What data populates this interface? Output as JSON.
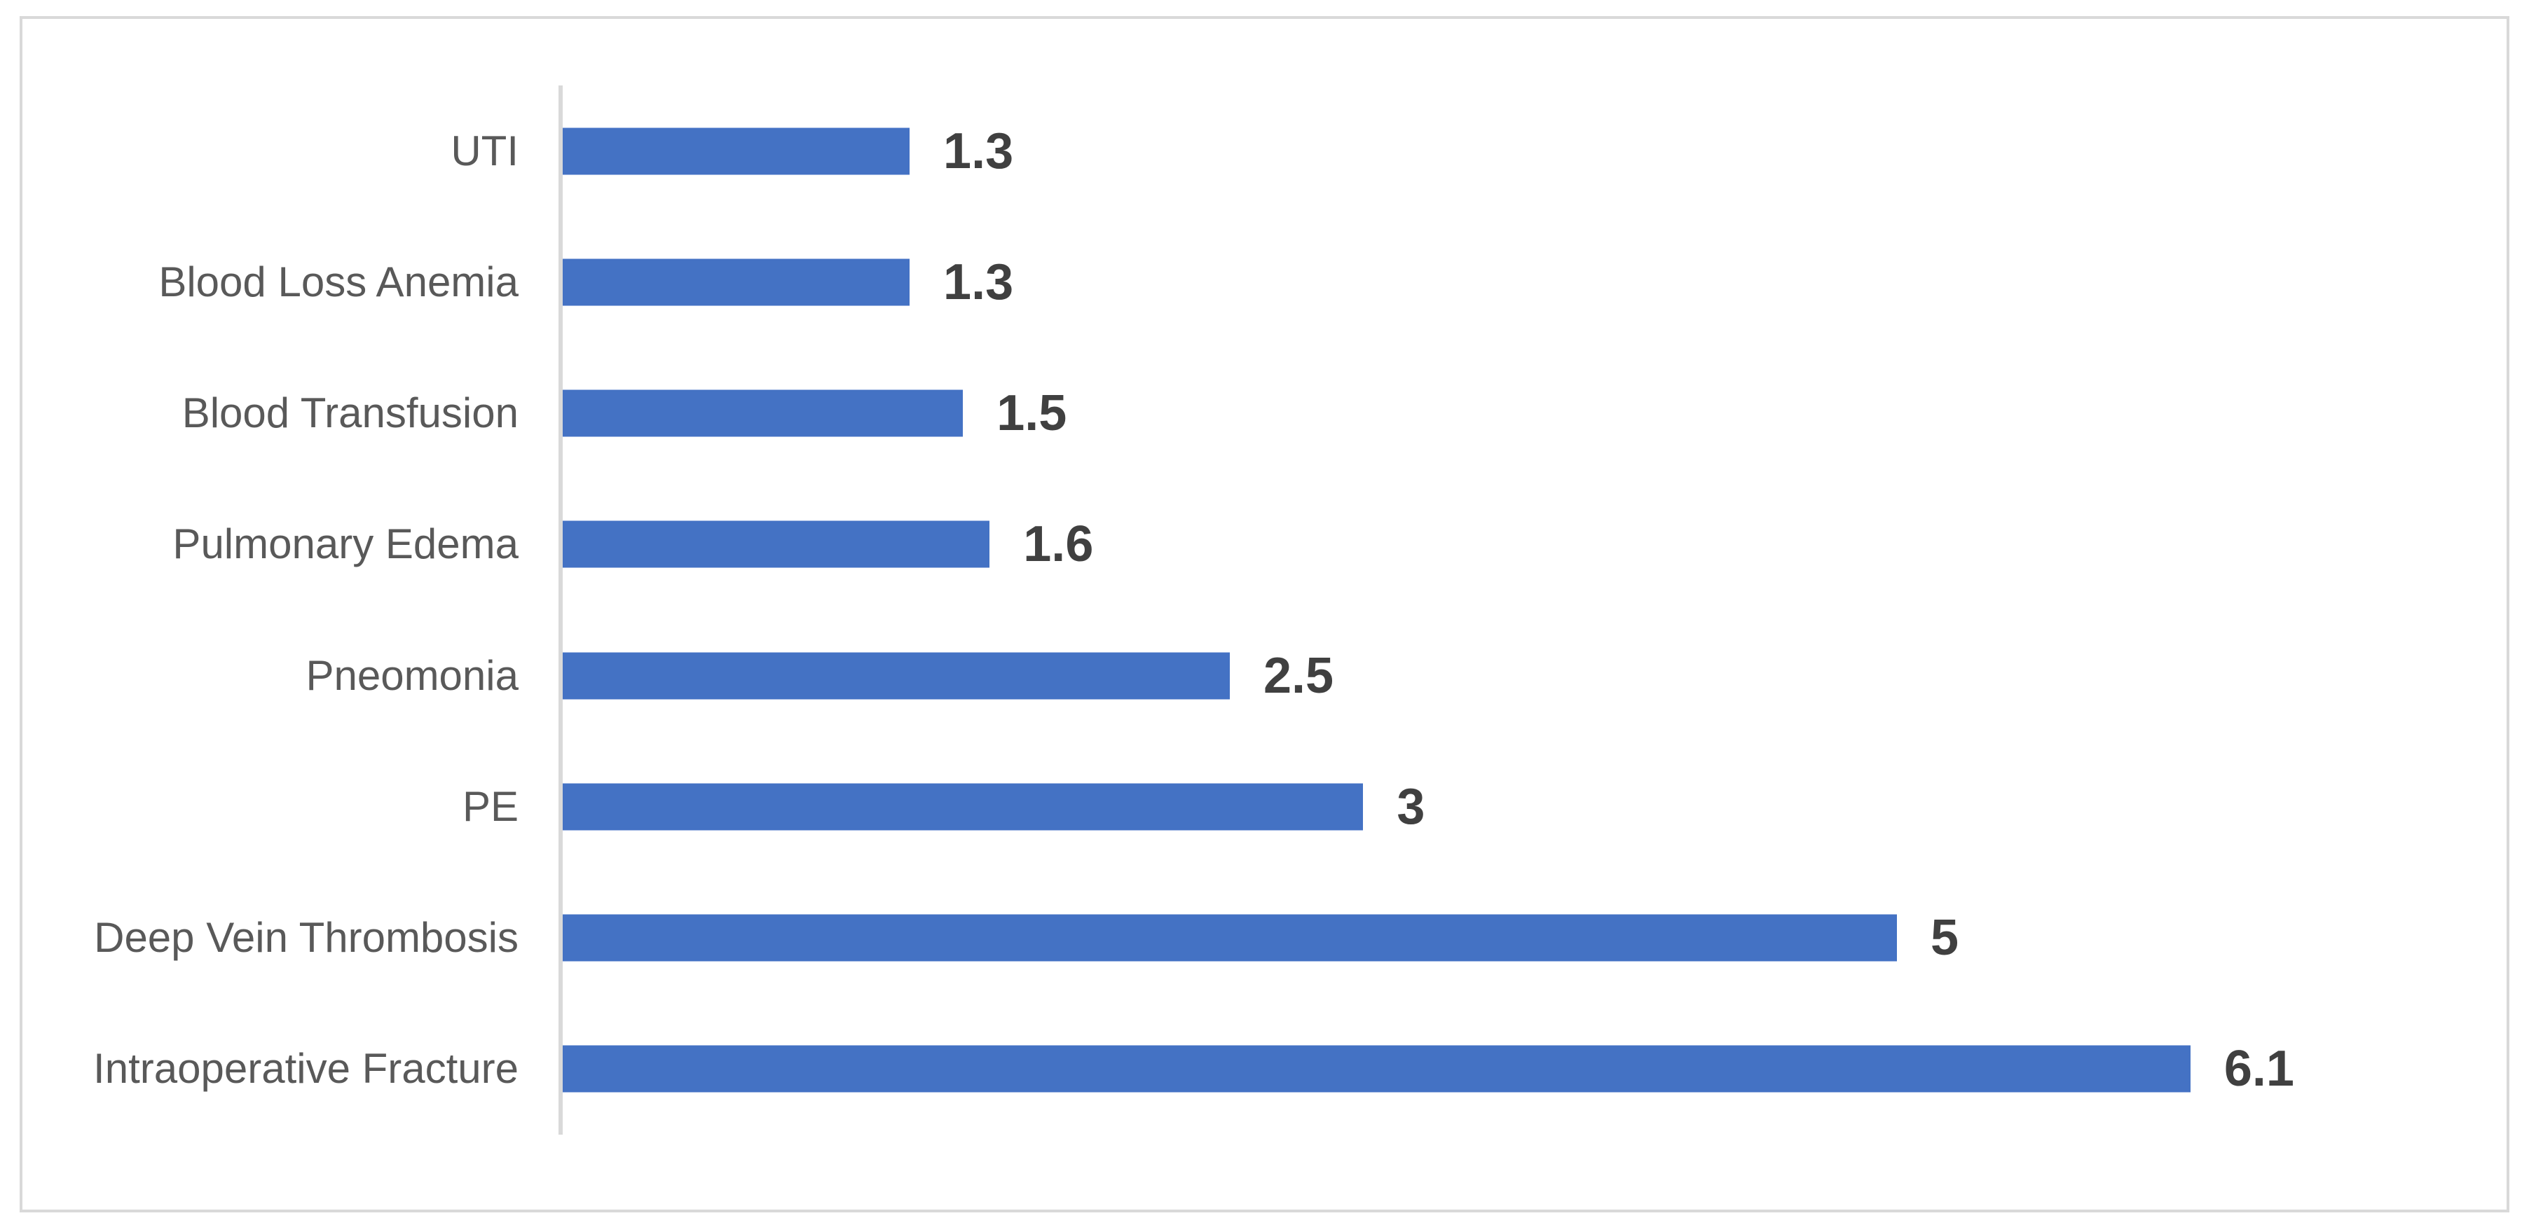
{
  "chart_data": {
    "type": "bar",
    "orientation": "horizontal",
    "title": "",
    "xlabel": "",
    "ylabel": "",
    "categories": [
      "UTI",
      "Blood Loss Anemia",
      "Blood Transfusion",
      "Pulmonary Edema",
      "Pneomonia",
      "PE",
      "Deep Vein Thrombosis",
      "Intraoperative Fracture"
    ],
    "values": [
      1.3,
      1.3,
      1.5,
      1.6,
      2.5,
      3,
      5,
      6.1
    ],
    "value_labels": [
      "1.3",
      "1.3",
      "1.5",
      "1.6",
      "2.5",
      "3",
      "5",
      "6.1"
    ],
    "xlim": [
      0,
      7
    ],
    "grid": false,
    "legend": false,
    "bar_color": "#4472C4",
    "category_label_color": "#595959",
    "value_label_color": "#404040",
    "axis_line_color": "#D9D9D9",
    "frame_border_color": "#D9D9D9",
    "background_color": "#FFFFFF"
  }
}
